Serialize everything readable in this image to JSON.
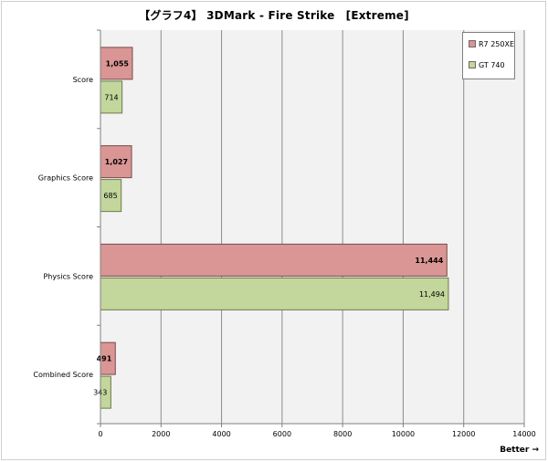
{
  "title": "【グラフ4】 3DMark - Fire Strike　[Extreme]",
  "footer_note": "Better →",
  "colors": {
    "series1": "#d99694",
    "series2": "#c3d69b",
    "plot_bg": "#f2f2f2",
    "grid": "#8c8c8c"
  },
  "chart_data": {
    "type": "bar",
    "orientation": "horizontal",
    "categories": [
      "Score",
      "Graphics Score",
      "Physics Score",
      "Combined Score"
    ],
    "series": [
      {
        "name": "R7 250XE",
        "values": [
          1055,
          1027,
          11444,
          491
        ],
        "labels": [
          "1,055",
          "1,027",
          "11,444",
          "491"
        ]
      },
      {
        "name": "GT 740",
        "values": [
          714,
          685,
          11494,
          343
        ],
        "labels": [
          "714",
          "685",
          "11,494",
          "343"
        ]
      }
    ],
    "xlim": [
      0,
      14000
    ],
    "xticks": [
      0,
      2000,
      4000,
      6000,
      8000,
      10000,
      12000,
      14000
    ],
    "grid": true,
    "legend_position": "top-right"
  }
}
